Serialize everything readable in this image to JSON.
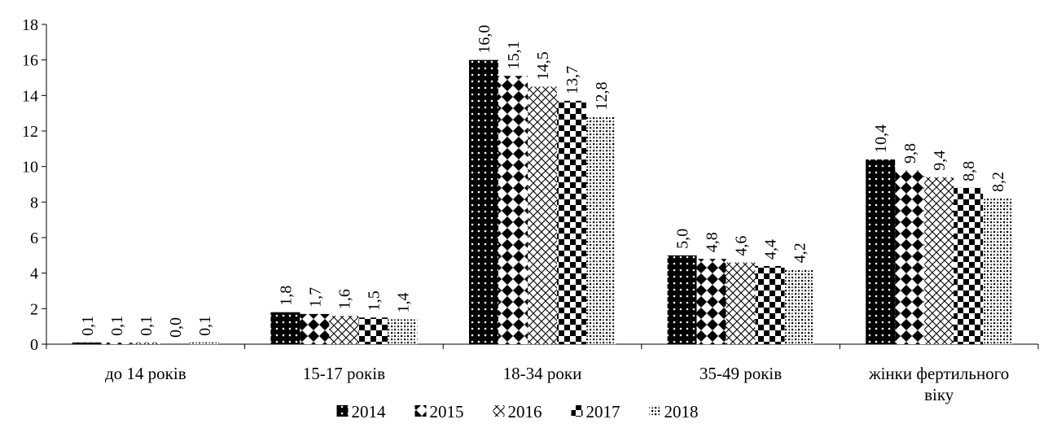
{
  "chart_data": {
    "type": "bar",
    "title": "",
    "xlabel": "",
    "ylabel": "",
    "ylim": [
      0,
      18
    ],
    "yticks": [
      "0",
      "2",
      "4",
      "6",
      "8",
      "10",
      "12",
      "14",
      "16",
      "18"
    ],
    "grid": false,
    "legend_position": "bottom",
    "categories": [
      [
        "до 14 років"
      ],
      [
        "15-17 років"
      ],
      [
        "18-34 роки"
      ],
      [
        "35-49 років"
      ],
      [
        "жінки фертильного",
        "віку"
      ]
    ],
    "series": [
      {
        "name": "2014",
        "pattern": "solid-dots",
        "values": [
          0.1,
          1.8,
          16.0,
          5.0,
          10.4
        ],
        "labels": [
          "0,1",
          "1,8",
          "16,0",
          "5,0",
          "10,4"
        ]
      },
      {
        "name": "2015",
        "pattern": "diamonds",
        "values": [
          0.1,
          1.7,
          15.1,
          4.8,
          9.8
        ],
        "labels": [
          "0,1",
          "1,7",
          "15,1",
          "4,8",
          "9,8"
        ]
      },
      {
        "name": "2016",
        "pattern": "crosshatch",
        "values": [
          0.1,
          1.6,
          14.5,
          4.6,
          9.4
        ],
        "labels": [
          "0,1",
          "1,6",
          "14,5",
          "4,6",
          "9,4"
        ]
      },
      {
        "name": "2017",
        "pattern": "checker",
        "values": [
          0.0,
          1.5,
          13.7,
          4.4,
          8.8
        ],
        "labels": [
          "0,0",
          "1,5",
          "13,7",
          "4,4",
          "8,8"
        ]
      },
      {
        "name": "2018",
        "pattern": "speckle",
        "values": [
          0.1,
          1.4,
          12.8,
          4.2,
          8.2
        ],
        "labels": [
          "0,1",
          "1,4",
          "12,8",
          "4,2",
          "8,2"
        ]
      }
    ],
    "colors": {
      "ink": "#000000",
      "background": "#ffffff"
    }
  }
}
